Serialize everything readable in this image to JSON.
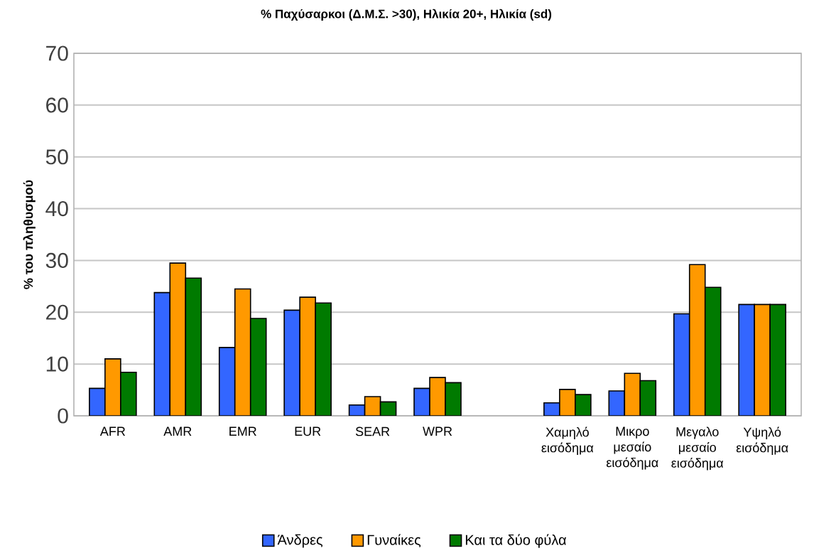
{
  "chart_data": {
    "type": "bar",
    "title": "% Παχύσαρκοι (Δ.Μ.Σ. >30), Ηλικία 20+, Ηλικία (sd)",
    "ylabel": "% του πληθυσμού",
    "categories": [
      "AFR",
      "AMR",
      "EMR",
      "EUR",
      "SEAR",
      "WPR",
      null,
      "Χαμηλό εισόδημα",
      "Μικρο μεσαίο εισόδημα",
      "Μεγαλο μεσαίο εισόδημα",
      "Υψηλό εισόδημα"
    ],
    "series": [
      {
        "name": "Άνδρες",
        "color": "#3366ff",
        "values": [
          5.3,
          23.8,
          13.2,
          20.4,
          2.1,
          5.3,
          null,
          2.5,
          4.8,
          19.7,
          21.5
        ]
      },
      {
        "name": "Γυναίκες",
        "color": "#ff9900",
        "values": [
          11.0,
          29.5,
          24.5,
          22.9,
          3.7,
          7.4,
          null,
          5.1,
          8.2,
          29.2,
          21.5
        ]
      },
      {
        "name": "Και τα δύο φύλα",
        "color": "#007a00",
        "values": [
          8.4,
          26.6,
          18.8,
          21.8,
          2.7,
          6.4,
          null,
          4.1,
          6.8,
          24.8,
          21.5
        ]
      }
    ],
    "ylim": [
      0,
      70
    ],
    "yticks": [
      0,
      10,
      20,
      30,
      40,
      50,
      60,
      70
    ],
    "grid": "y",
    "legend": "bottom"
  }
}
